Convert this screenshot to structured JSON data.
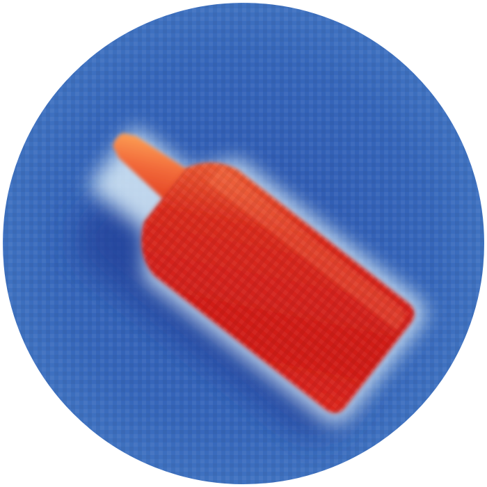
{
  "image": {
    "subject": "bottle",
    "colors": {
      "background_field": "#3a6fc0",
      "background_deep": "#2b4fa6",
      "halo_light": "#e9f1fa",
      "halo_cyan": "#9cc9e8",
      "body_red": "#d81f1a",
      "body_deep_red": "#c2161a",
      "shoulder_orange": "#f26a3a",
      "page_white": "#ffffff"
    }
  }
}
